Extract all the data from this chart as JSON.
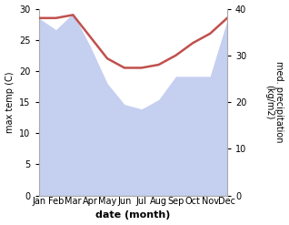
{
  "months": [
    "Jan",
    "Feb",
    "Mar",
    "Apr",
    "May",
    "Jun",
    "Jul",
    "Aug",
    "Sep",
    "Oct",
    "Nov",
    "Dec"
  ],
  "x": [
    0,
    1,
    2,
    3,
    4,
    5,
    6,
    7,
    8,
    9,
    10,
    11
  ],
  "max_temp": [
    28.5,
    28.5,
    29.0,
    25.5,
    22.0,
    20.5,
    20.5,
    21.0,
    22.5,
    24.5,
    26.0,
    28.5
  ],
  "precipitation_right": [
    38.0,
    35.5,
    39.0,
    32.0,
    24.0,
    19.5,
    18.5,
    20.5,
    25.5,
    25.5,
    25.5,
    37.5
  ],
  "temp_color": "#c0504d",
  "precip_fill_color": "#c5cff0",
  "temp_ylim": [
    0,
    30
  ],
  "precip_ylim": [
    0,
    40
  ],
  "temp_yticks": [
    0,
    5,
    10,
    15,
    20,
    25,
    30
  ],
  "precip_yticks": [
    0,
    10,
    20,
    30,
    40
  ],
  "xlabel": "date (month)",
  "ylabel_left": "max temp (C)",
  "ylabel_right": "med. precipitation\n(kg/m2)",
  "background_color": "#ffffff",
  "spine_color": "#aaaaaa",
  "tick_label_size": 7,
  "axis_label_size": 7,
  "xlabel_size": 8
}
